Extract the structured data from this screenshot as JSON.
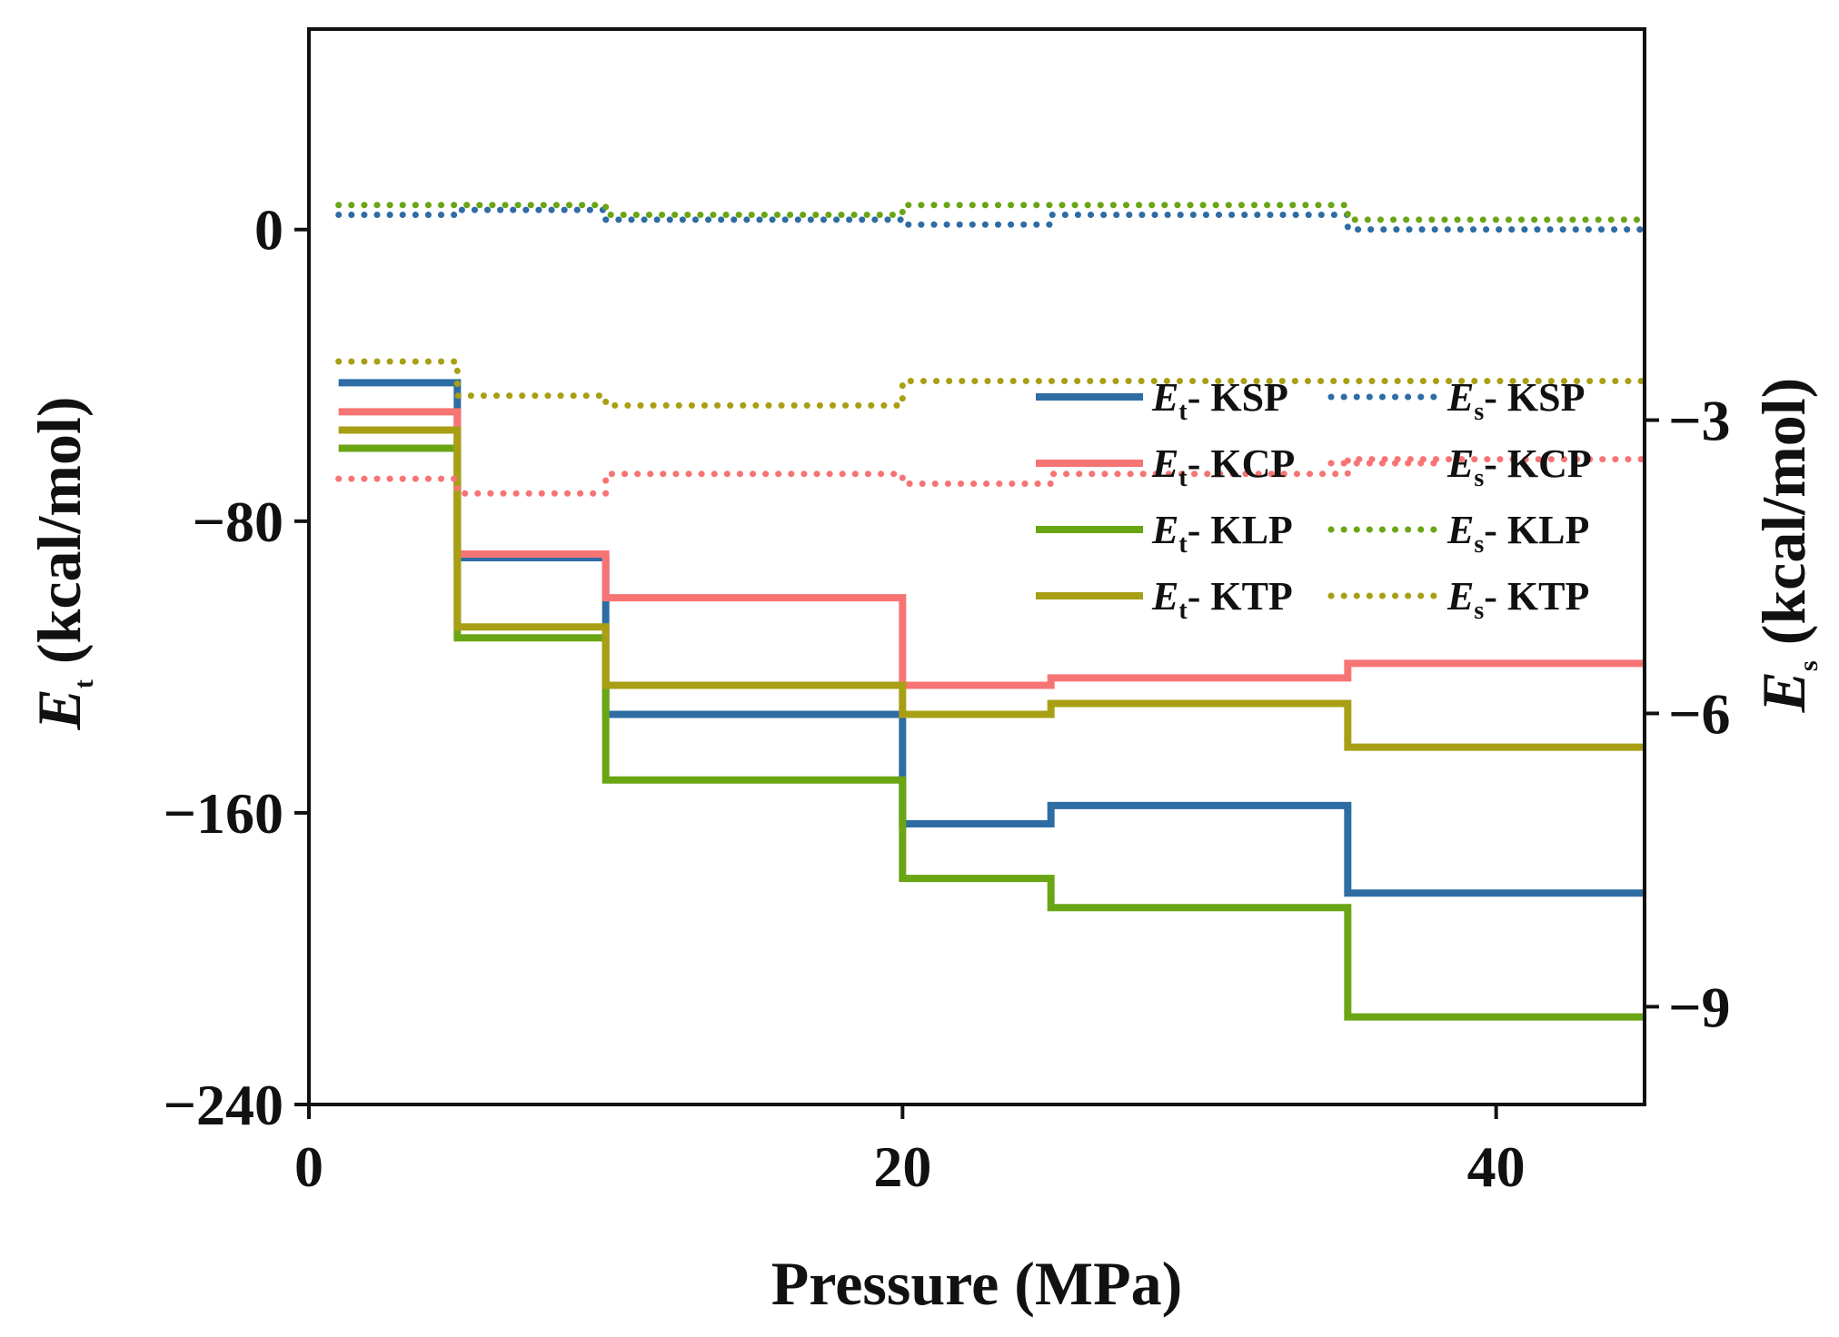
{
  "chart_data": {
    "type": "line",
    "step": true,
    "xlabel": "Pressure (MPa)",
    "ylabel_left": {
      "main": "E",
      "sub": "t",
      "unit": "(kcal/mol)"
    },
    "ylabel_right": {
      "main": "E",
      "sub": "s",
      "unit": "(kcal/mol)"
    },
    "xlim": [
      0,
      45
    ],
    "ylim_left": [
      -240,
      55
    ],
    "ylim_right": [
      -10.0,
      1.0
    ],
    "xticks": [
      0,
      20,
      40
    ],
    "xtick_labels": [
      "0",
      "20",
      "40"
    ],
    "yticks_left": [
      -240,
      -160,
      -80,
      0
    ],
    "ytick_labels_left": [
      "−240",
      "−160",
      "−80",
      "0"
    ],
    "yticks_right": [
      -9,
      -6,
      -3
    ],
    "ytick_labels_right": [
      "−9",
      "−6",
      "−3"
    ],
    "colors": {
      "KSP": "#2e6ca4",
      "KCP": "#f77474",
      "KLP": "#6aa514",
      "KTP": "#a89f14"
    },
    "x": [
      1,
      5,
      10,
      20,
      25,
      35,
      45
    ],
    "series": [
      {
        "name": "Et- KSP",
        "axis": "left",
        "style": "solid",
        "color": "#2e6ca4",
        "values": [
          -42,
          -90,
          -133,
          -163,
          -158,
          -182,
          -182
        ]
      },
      {
        "name": "Et- KCP",
        "axis": "left",
        "style": "solid",
        "color": "#f77474",
        "values": [
          -50,
          -89,
          -101,
          -125,
          -123,
          -119,
          -119
        ]
      },
      {
        "name": "Et- KLP",
        "axis": "left",
        "style": "solid",
        "color": "#6aa514",
        "values": [
          -60,
          -112,
          -151,
          -178,
          -186,
          -216,
          -216
        ]
      },
      {
        "name": "Et- KTP",
        "axis": "left",
        "style": "solid",
        "color": "#a89f14",
        "values": [
          -55,
          -109,
          -125,
          -133,
          -130,
          -142,
          -142
        ]
      },
      {
        "name": "Es- KSP",
        "axis": "right",
        "style": "dotted",
        "color": "#2e6ca4",
        "values": [
          -0.9,
          -0.85,
          -0.95,
          -1.0,
          -0.9,
          -1.05,
          -1.05
        ]
      },
      {
        "name": "Es- KCP",
        "axis": "right",
        "style": "dotted",
        "color": "#f77474",
        "values": [
          -3.6,
          -3.75,
          -3.55,
          -3.65,
          -3.55,
          -3.4,
          -3.4
        ]
      },
      {
        "name": "Es- KLP",
        "axis": "right",
        "style": "dotted",
        "color": "#6aa514",
        "values": [
          -0.8,
          -0.8,
          -0.9,
          -0.8,
          -0.8,
          -0.95,
          -0.95
        ]
      },
      {
        "name": "Es- KTP",
        "axis": "right",
        "style": "dotted",
        "color": "#a89f14",
        "values": [
          -2.4,
          -2.75,
          -2.85,
          -2.6,
          -2.6,
          -2.6,
          -2.6
        ]
      }
    ],
    "legend": {
      "position": "right",
      "entries": [
        {
          "symbol": "E",
          "sub": "t",
          "label": "- KSP",
          "series": "Et- KSP"
        },
        {
          "symbol": "E",
          "sub": "s",
          "label": "- KSP",
          "series": "Es- KSP"
        },
        {
          "symbol": "E",
          "sub": "t",
          "label": "- KCP",
          "series": "Et- KCP"
        },
        {
          "symbol": "E",
          "sub": "s",
          "label": "- KCP",
          "series": "Es- KCP"
        },
        {
          "symbol": "E",
          "sub": "t",
          "label": "- KLP",
          "series": "Et- KLP"
        },
        {
          "symbol": "E",
          "sub": "s",
          "label": "- KLP",
          "series": "Es- KLP"
        },
        {
          "symbol": "E",
          "sub": "t",
          "label": "- KTP",
          "series": "Et- KTP"
        },
        {
          "symbol": "E",
          "sub": "s",
          "label": "- KTP",
          "series": "Es- KTP"
        }
      ]
    }
  }
}
